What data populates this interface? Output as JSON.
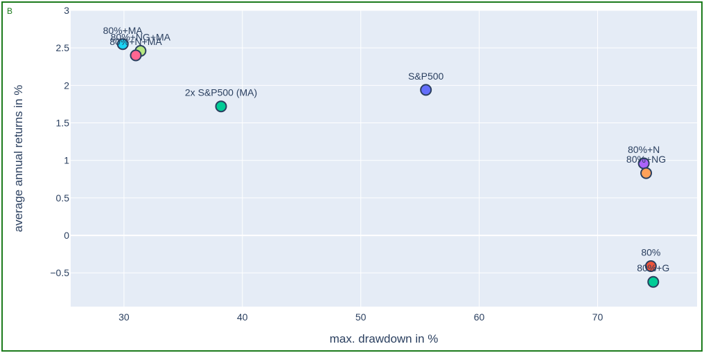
{
  "panel_label": "B",
  "colors": {
    "frame": "#1a7a1a",
    "plot_bg": "#e5ecf6",
    "grid": "#ffffff",
    "text": "#2a3f5f",
    "marker_outline": "#2a3f5f"
  },
  "chart_data": {
    "type": "scatter",
    "title": "",
    "xlabel": "max. drawdown in %",
    "ylabel": "average annual returns in %",
    "xlim": [
      25.5,
      78.4
    ],
    "ylim": [
      -0.95,
      3.0
    ],
    "xticks": [
      {
        "value": 30,
        "label": "30"
      },
      {
        "value": 40,
        "label": "40"
      },
      {
        "value": 50,
        "label": "50"
      },
      {
        "value": 60,
        "label": "60"
      },
      {
        "value": 70,
        "label": "70"
      }
    ],
    "yticks": [
      {
        "value": -0.5,
        "label": "−0.5"
      },
      {
        "value": 0,
        "label": "0"
      },
      {
        "value": 0.5,
        "label": "0.5"
      },
      {
        "value": 1,
        "label": "1"
      },
      {
        "value": 1.5,
        "label": "1.5"
      },
      {
        "value": 2,
        "label": "2"
      },
      {
        "value": 2.5,
        "label": "2.5"
      },
      {
        "value": 3,
        "label": "3"
      }
    ],
    "grid": true,
    "points": [
      {
        "label": "80%+MA",
        "x": 29.9,
        "y": 2.55,
        "color": "#19d3f3"
      },
      {
        "label": "80%+NG+MA",
        "x": 31.4,
        "y": 2.46,
        "color": "#b6e880"
      },
      {
        "label": "80%+N+MA",
        "x": 31.0,
        "y": 2.4,
        "color": "#ff6692"
      },
      {
        "label": "2x S&P500 (MA)",
        "x": 38.2,
        "y": 1.72,
        "color": "#00cc96"
      },
      {
        "label": "S&P500",
        "x": 55.5,
        "y": 1.94,
        "color": "#636efa"
      },
      {
        "label": "80%+N",
        "x": 73.9,
        "y": 0.96,
        "color": "#ab63fa"
      },
      {
        "label": "80%+NG",
        "x": 74.1,
        "y": 0.83,
        "color": "#ffa15a"
      },
      {
        "label": "80%",
        "x": 74.5,
        "y": -0.41,
        "color": "#ef553b"
      },
      {
        "label": "80%+G",
        "x": 74.7,
        "y": -0.62,
        "color": "#00cc96"
      }
    ]
  }
}
